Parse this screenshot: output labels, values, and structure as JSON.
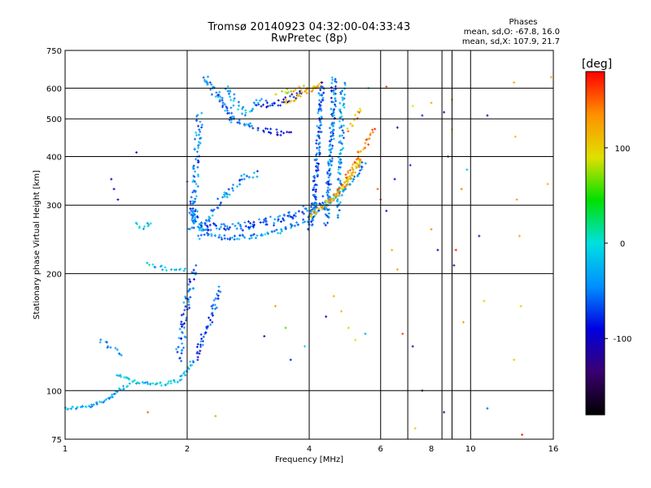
{
  "header": {
    "title": "Tromsø 20140923 04:32:00-04:33:43",
    "subtitle": "RwPretec (8p)"
  },
  "stats": {
    "title": "Phases",
    "line_o": "mean, sd,O: -67.8, 16.0",
    "line_x": "mean, sd,X: 107.9, 21.7"
  },
  "chart_data": {
    "type": "scatter",
    "xlabel": "Frequency [MHz]",
    "ylabel": "Stationary phase Virtual Height [km]",
    "x_scale": "log",
    "y_scale": "log",
    "xlim": [
      1,
      16
    ],
    "ylim": [
      75,
      750
    ],
    "x_ticks": [
      1,
      2,
      4,
      6,
      8,
      10,
      16
    ],
    "x_tick_labels": [
      "1",
      "2",
      "4",
      "6",
      "8",
      "10",
      "16"
    ],
    "x_grid": [
      2,
      4,
      6,
      7,
      8.5,
      9,
      10
    ],
    "y_ticks": [
      75,
      100,
      200,
      300,
      400,
      500,
      600,
      750
    ],
    "y_tick_labels": [
      "75",
      "100",
      "200",
      "300",
      "400",
      "500",
      "600",
      "750"
    ],
    "y_grid": [
      100,
      200,
      300,
      400,
      500,
      600
    ],
    "grid": true,
    "colorbar": {
      "label": "[deg]",
      "range": [
        -180,
        180
      ],
      "ticks": [
        100,
        0,
        -100
      ],
      "tick_labels": [
        "100",
        "0",
        "-100"
      ],
      "colors": [
        "#000000",
        "#3a0070",
        "#0000e0",
        "#0090ff",
        "#00e0e0",
        "#00e000",
        "#e0e000",
        "#ff9000",
        "#ff0000"
      ]
    },
    "traces": [
      {
        "name": "",
        "shape": "curve",
        "phase": -30,
        "spread": 2,
        "density": 3,
        "f": [
          1.0,
          1.15,
          1.25,
          1.35,
          1.45
        ],
        "h": [
          90,
          91,
          94,
          100,
          104
        ]
      },
      {
        "name": "",
        "shape": "curve",
        "phase": -20,
        "spread": 2,
        "density": 3,
        "f": [
          1.35,
          1.45,
          1.6,
          1.75,
          1.9,
          2.0,
          2.06
        ],
        "h": [
          110,
          106,
          104,
          104,
          106,
          112,
          120
        ]
      },
      {
        "name": "",
        "shape": "curve",
        "phase": -60,
        "spread": 4,
        "density": 3,
        "f": [
          1.9,
          1.95,
          2.0,
          2.05,
          2.1
        ],
        "h": [
          120,
          140,
          170,
          190,
          210
        ]
      },
      {
        "name": "",
        "shape": "curve",
        "phase": -70,
        "spread": 3,
        "density": 3,
        "f": [
          2.1,
          2.2,
          2.3,
          2.35,
          2.4
        ],
        "h": [
          120,
          140,
          155,
          170,
          185
        ]
      },
      {
        "name": "",
        "shape": "curve",
        "phase": -50,
        "spread": 3,
        "density": 2,
        "f": [
          1.22,
          1.3,
          1.4
        ],
        "h": [
          135,
          128,
          122
        ]
      },
      {
        "name": "",
        "shape": "curve",
        "phase": -40,
        "spread": 3,
        "density": 3,
        "f": [
          2.05,
          2.1,
          2.2,
          2.4,
          2.7,
          3.0,
          3.4,
          3.8,
          4.1,
          4.5,
          4.9,
          5.2,
          5.5
        ],
        "h": [
          290,
          268,
          255,
          248,
          247,
          250,
          258,
          270,
          285,
          305,
          330,
          355,
          390
        ]
      },
      {
        "name": "",
        "shape": "curve",
        "phase": -60,
        "spread": 5,
        "density": 4,
        "f": [
          2.05,
          2.1,
          2.2,
          2.5,
          2.8,
          3.2,
          3.6,
          4.0,
          4.4
        ],
        "h": [
          300,
          275,
          265,
          262,
          265,
          272,
          282,
          295,
          310
        ]
      },
      {
        "name": "",
        "shape": "curve",
        "phase": -45,
        "spread": 4,
        "density": 3,
        "f": [
          2.05,
          2.08,
          2.1,
          2.12,
          2.15
        ],
        "h": [
          260,
          300,
          360,
          440,
          520
        ]
      },
      {
        "name": "",
        "shape": "curve",
        "phase": -45,
        "spread": 4,
        "density": 3,
        "f": [
          2.15,
          2.3,
          2.5,
          2.7,
          2.8,
          3.0
        ],
        "h": [
          250,
          290,
          320,
          340,
          360,
          360
        ]
      },
      {
        "name": "",
        "shape": "curve",
        "phase": -50,
        "spread": 5,
        "density": 4,
        "f": [
          2.2,
          2.3,
          2.4,
          2.5,
          2.6,
          2.7,
          2.9
        ],
        "h": [
          640,
          600,
          560,
          530,
          500,
          490,
          480
        ]
      },
      {
        "name": "",
        "shape": "curve",
        "phase": -30,
        "spread": 4,
        "density": 3,
        "f": [
          2.5,
          2.6,
          2.7,
          2.8,
          2.9,
          3.1
        ],
        "h": [
          600,
          560,
          530,
          520,
          540,
          560
        ]
      },
      {
        "name": "",
        "shape": "curve",
        "phase": -95,
        "spread": 3,
        "density": 3,
        "f": [
          3.0,
          3.2,
          3.4,
          3.6,
          3.9
        ],
        "h": [
          540,
          545,
          550,
          565,
          590
        ]
      },
      {
        "name": "",
        "shape": "curve",
        "phase": -95,
        "spread": 3,
        "density": 3,
        "f": [
          3.0,
          3.2,
          3.4,
          3.6
        ],
        "h": [
          470,
          465,
          460,
          460
        ]
      },
      {
        "name": "",
        "shape": "curve",
        "phase": 120,
        "spread": 3,
        "density": 3,
        "f": [
          3.5,
          3.7,
          3.9,
          4.1,
          4.3
        ],
        "h": [
          550,
          565,
          585,
          600,
          615
        ]
      },
      {
        "name": "",
        "shape": "curve",
        "phase": 100,
        "spread": 3,
        "density": 2,
        "f": [
          3.3,
          3.5,
          3.8,
          4.1,
          4.3
        ],
        "h": [
          580,
          590,
          600,
          605,
          615
        ]
      },
      {
        "name": "",
        "shape": "curve",
        "phase": -60,
        "spread": 3,
        "density": 4,
        "f": [
          4.0,
          4.1,
          4.15,
          4.2,
          4.25,
          4.3
        ],
        "h": [
          260,
          300,
          360,
          420,
          500,
          620
        ]
      },
      {
        "name": "",
        "shape": "curve",
        "phase": -50,
        "spread": 3,
        "density": 4,
        "f": [
          4.4,
          4.45,
          4.5,
          4.55,
          4.6,
          4.6
        ],
        "h": [
          270,
          320,
          380,
          460,
          560,
          640
        ]
      },
      {
        "name": "",
        "shape": "curve",
        "phase": -40,
        "spread": 3,
        "density": 3,
        "f": [
          4.7,
          4.75,
          4.8,
          4.82,
          4.85
        ],
        "h": [
          280,
          340,
          420,
          520,
          620
        ]
      },
      {
        "name": "",
        "shape": "curve",
        "phase": 110,
        "spread": 3,
        "density": 4,
        "f": [
          4.0,
          4.3,
          4.6,
          4.9,
          5.2,
          5.4
        ],
        "h": [
          280,
          295,
          315,
          340,
          370,
          400
        ]
      },
      {
        "name": "",
        "shape": "curve",
        "phase": 135,
        "spread": 3,
        "density": 3,
        "f": [
          4.6,
          4.9,
          5.2,
          5.5,
          5.7,
          5.8
        ],
        "h": [
          310,
          345,
          390,
          430,
          460,
          470
        ]
      },
      {
        "name": "",
        "shape": "curve",
        "phase": 120,
        "spread": 3,
        "density": 2,
        "f": [
          5.0,
          5.2,
          5.3,
          5.4
        ],
        "h": [
          460,
          500,
          520,
          540
        ]
      },
      {
        "name": "",
        "shape": "curve",
        "phase": -25,
        "spread": 3,
        "density": 2,
        "f": [
          1.5,
          1.55,
          1.6,
          1.65
        ],
        "h": [
          270,
          260,
          265,
          270
        ]
      },
      {
        "name": "",
        "shape": "curve",
        "phase": -15,
        "spread": 3,
        "density": 2,
        "f": [
          1.6,
          1.7,
          1.8,
          1.9,
          2.0
        ],
        "h": [
          212,
          208,
          206,
          205,
          204
        ]
      }
    ],
    "points": [
      {
        "x": 1.3,
        "h": 350,
        "p": -100
      },
      {
        "x": 1.32,
        "h": 330,
        "p": -90
      },
      {
        "x": 1.35,
        "h": 310,
        "p": -95
      },
      {
        "x": 1.5,
        "h": 410,
        "p": -100
      },
      {
        "x": 2.0,
        "h": 345,
        "p": -70
      },
      {
        "x": 3.1,
        "h": 138,
        "p": -120
      },
      {
        "x": 3.3,
        "h": 165,
        "p": 130
      },
      {
        "x": 3.5,
        "h": 145,
        "p": 60
      },
      {
        "x": 3.6,
        "h": 120,
        "p": -80
      },
      {
        "x": 3.9,
        "h": 130,
        "p": -10
      },
      {
        "x": 4.4,
        "h": 155,
        "p": -100
      },
      {
        "x": 4.6,
        "h": 175,
        "p": 120
      },
      {
        "x": 4.8,
        "h": 160,
        "p": 110
      },
      {
        "x": 5.0,
        "h": 145,
        "p": 100
      },
      {
        "x": 5.2,
        "h": 135,
        "p": 90
      },
      {
        "x": 5.5,
        "h": 140,
        "p": -30
      },
      {
        "x": 5.9,
        "h": 330,
        "p": 150
      },
      {
        "x": 6.0,
        "h": 310,
        "p": 160
      },
      {
        "x": 6.2,
        "h": 290,
        "p": -90
      },
      {
        "x": 6.5,
        "h": 350,
        "p": -100
      },
      {
        "x": 6.4,
        "h": 230,
        "p": 120
      },
      {
        "x": 6.6,
        "h": 205,
        "p": 130
      },
      {
        "x": 6.8,
        "h": 140,
        "p": 160
      },
      {
        "x": 7.2,
        "h": 130,
        "p": -120
      },
      {
        "x": 7.6,
        "h": 100,
        "p": -130
      },
      {
        "x": 7.3,
        "h": 80,
        "p": 100
      },
      {
        "x": 8.0,
        "h": 260,
        "p": 140
      },
      {
        "x": 8.3,
        "h": 230,
        "p": -110
      },
      {
        "x": 8.6,
        "h": 520,
        "p": -90
      },
      {
        "x": 8.8,
        "h": 400,
        "p": -100
      },
      {
        "x": 9.0,
        "h": 560,
        "p": 130
      },
      {
        "x": 9.2,
        "h": 230,
        "p": 170
      },
      {
        "x": 9.1,
        "h": 210,
        "p": -110
      },
      {
        "x": 9.5,
        "h": 330,
        "p": 140
      },
      {
        "x": 9.8,
        "h": 370,
        "p": -20
      },
      {
        "x": 10.5,
        "h": 250,
        "p": -100
      },
      {
        "x": 10.8,
        "h": 170,
        "p": 100
      },
      {
        "x": 11.0,
        "h": 510,
        "p": -100
      },
      {
        "x": 12.8,
        "h": 620,
        "p": 120
      },
      {
        "x": 12.9,
        "h": 450,
        "p": 110
      },
      {
        "x": 13.0,
        "h": 310,
        "p": 130
      },
      {
        "x": 13.2,
        "h": 250,
        "p": 120
      },
      {
        "x": 13.3,
        "h": 165,
        "p": 100
      },
      {
        "x": 13.4,
        "h": 77,
        "p": 170
      },
      {
        "x": 15.5,
        "h": 340,
        "p": 110
      },
      {
        "x": 15.8,
        "h": 640,
        "p": 120
      },
      {
        "x": 1.6,
        "h": 88,
        "p": 150
      },
      {
        "x": 2.35,
        "h": 86,
        "p": 70
      },
      {
        "x": 8.0,
        "h": 550,
        "p": 120
      },
      {
        "x": 9.0,
        "h": 470,
        "p": 110
      },
      {
        "x": 6.6,
        "h": 475,
        "p": -110
      },
      {
        "x": 6.2,
        "h": 605,
        "p": 160
      },
      {
        "x": 7.2,
        "h": 540,
        "p": 90
      },
      {
        "x": 7.6,
        "h": 510,
        "p": -80
      },
      {
        "x": 8.6,
        "h": 88,
        "p": -130
      },
      {
        "x": 9.6,
        "h": 150,
        "p": 130
      },
      {
        "x": 11.0,
        "h": 90,
        "p": -60
      },
      {
        "x": 12.8,
        "h": 120,
        "p": 100
      },
      {
        "x": 5.6,
        "h": 600,
        "p": -20
      },
      {
        "x": 7.1,
        "h": 380,
        "p": -80
      }
    ]
  }
}
